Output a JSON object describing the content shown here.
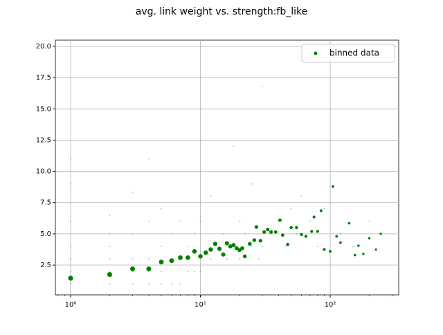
{
  "chart_data": {
    "type": "scatter",
    "title": "avg. link weight vs. strength:fb_like",
    "xscale": "log",
    "grid": true,
    "legend": "upper right",
    "xlim": [
      0.763,
      337
    ],
    "ylim": [
      0.12,
      20.5
    ],
    "xticks": [
      {
        "value": 1,
        "label": "10⁰"
      },
      {
        "value": 10,
        "label": "10¹"
      },
      {
        "value": 100,
        "label": "10²"
      }
    ],
    "yticks": [
      {
        "value": 2.5,
        "label": "2.5"
      },
      {
        "value": 5,
        "label": "5.0"
      },
      {
        "value": 7.5,
        "label": "7.5"
      },
      {
        "value": 10,
        "label": "10.0"
      },
      {
        "value": 12.5,
        "label": "12.5"
      },
      {
        "value": 15,
        "label": "15.0"
      },
      {
        "value": 17.5,
        "label": "17.5"
      },
      {
        "value": 20,
        "label": "20.0"
      }
    ],
    "raw": {
      "color": "#1f77b4",
      "x": [
        1,
        1,
        1,
        1,
        1,
        1,
        1,
        2,
        2,
        2,
        2,
        2,
        2,
        3,
        3,
        3,
        3,
        3,
        4,
        4,
        4,
        4,
        4,
        5,
        5,
        5,
        5,
        6,
        6,
        6,
        7,
        7,
        7,
        8,
        8,
        9,
        9,
        10,
        10,
        12,
        12,
        14,
        15,
        16,
        18,
        20,
        20,
        22,
        25,
        25,
        28,
        30,
        30,
        35,
        40,
        45,
        50,
        55,
        60,
        70,
        80,
        90,
        100,
        120,
        150,
        200,
        250
      ],
      "y": [
        1,
        2,
        3,
        4,
        6,
        9,
        11,
        1,
        2,
        3,
        4,
        5,
        6.5,
        1,
        2,
        3,
        5,
        8.3,
        1,
        2,
        3,
        6,
        11,
        1,
        2,
        4,
        7,
        1,
        3,
        5,
        1,
        3,
        6,
        2,
        4,
        2,
        5,
        2,
        6,
        3,
        8,
        4,
        5,
        3,
        12,
        3,
        6,
        5,
        4,
        9,
        3,
        4,
        16.8,
        5,
        6,
        4,
        7,
        5,
        8,
        6,
        4,
        7,
        15,
        5,
        4,
        6,
        5
      ]
    },
    "series": [
      {
        "name": "binned data",
        "color": "#008000",
        "x": [
          1,
          2,
          3,
          4,
          5,
          6,
          7,
          8,
          9,
          10,
          11,
          12,
          13,
          14,
          15,
          16,
          17,
          18,
          19,
          20,
          21,
          22,
          24,
          26,
          27,
          29,
          31,
          33,
          35,
          38,
          41,
          43,
          47,
          50,
          55,
          60,
          65,
          72,
          75,
          80,
          85,
          90,
          100,
          105,
          112,
          120,
          140,
          155,
          165,
          180,
          200,
          225,
          245
        ],
        "values": [
          1.45,
          1.75,
          2.2,
          2.2,
          2.75,
          2.85,
          3.1,
          3.1,
          3.6,
          3.2,
          3.5,
          3.75,
          4.2,
          3.8,
          3.35,
          4.25,
          4.0,
          4.1,
          3.85,
          3.7,
          3.85,
          3.2,
          4.2,
          4.5,
          5.55,
          4.45,
          5.15,
          5.35,
          5.15,
          5.15,
          6.1,
          4.9,
          4.15,
          5.5,
          5.5,
          4.95,
          4.8,
          5.2,
          6.35,
          5.2,
          6.85,
          3.75,
          3.6,
          8.8,
          4.8,
          4.3,
          5.85,
          3.3,
          4.05,
          3.4,
          4.65,
          3.75,
          5.0
        ]
      }
    ]
  }
}
